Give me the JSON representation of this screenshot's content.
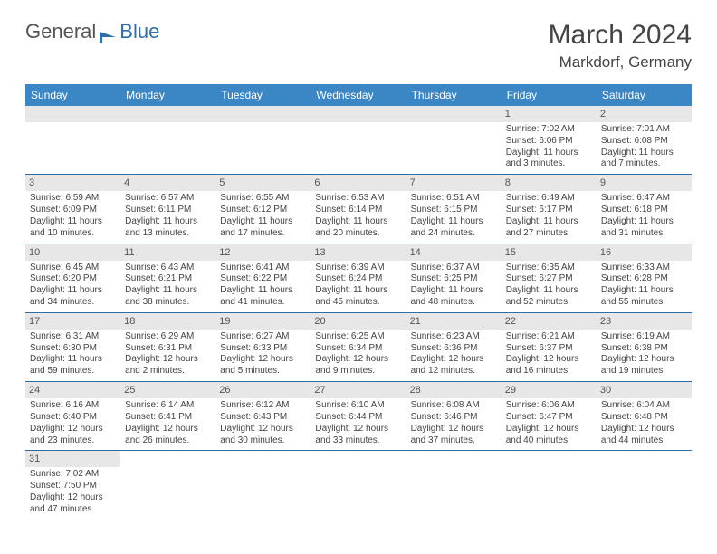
{
  "brand": {
    "part1": "General",
    "part2": "Blue"
  },
  "title": {
    "month": "March 2024",
    "location": "Markdorf, Germany"
  },
  "colors": {
    "headerBg": "#3b86c4",
    "weekRule": "#2e6da8",
    "numBg": "#e7e7e7",
    "text": "#444"
  },
  "dayNames": [
    "Sunday",
    "Monday",
    "Tuesday",
    "Wednesday",
    "Thursday",
    "Friday",
    "Saturday"
  ],
  "weeks": [
    [
      null,
      null,
      null,
      null,
      null,
      {
        "n": "1",
        "sr": "Sunrise: 7:02 AM",
        "ss": "Sunset: 6:06 PM",
        "d1": "Daylight: 11 hours",
        "d2": "and 3 minutes."
      },
      {
        "n": "2",
        "sr": "Sunrise: 7:01 AM",
        "ss": "Sunset: 6:08 PM",
        "d1": "Daylight: 11 hours",
        "d2": "and 7 minutes."
      }
    ],
    [
      {
        "n": "3",
        "sr": "Sunrise: 6:59 AM",
        "ss": "Sunset: 6:09 PM",
        "d1": "Daylight: 11 hours",
        "d2": "and 10 minutes."
      },
      {
        "n": "4",
        "sr": "Sunrise: 6:57 AM",
        "ss": "Sunset: 6:11 PM",
        "d1": "Daylight: 11 hours",
        "d2": "and 13 minutes."
      },
      {
        "n": "5",
        "sr": "Sunrise: 6:55 AM",
        "ss": "Sunset: 6:12 PM",
        "d1": "Daylight: 11 hours",
        "d2": "and 17 minutes."
      },
      {
        "n": "6",
        "sr": "Sunrise: 6:53 AM",
        "ss": "Sunset: 6:14 PM",
        "d1": "Daylight: 11 hours",
        "d2": "and 20 minutes."
      },
      {
        "n": "7",
        "sr": "Sunrise: 6:51 AM",
        "ss": "Sunset: 6:15 PM",
        "d1": "Daylight: 11 hours",
        "d2": "and 24 minutes."
      },
      {
        "n": "8",
        "sr": "Sunrise: 6:49 AM",
        "ss": "Sunset: 6:17 PM",
        "d1": "Daylight: 11 hours",
        "d2": "and 27 minutes."
      },
      {
        "n": "9",
        "sr": "Sunrise: 6:47 AM",
        "ss": "Sunset: 6:18 PM",
        "d1": "Daylight: 11 hours",
        "d2": "and 31 minutes."
      }
    ],
    [
      {
        "n": "10",
        "sr": "Sunrise: 6:45 AM",
        "ss": "Sunset: 6:20 PM",
        "d1": "Daylight: 11 hours",
        "d2": "and 34 minutes."
      },
      {
        "n": "11",
        "sr": "Sunrise: 6:43 AM",
        "ss": "Sunset: 6:21 PM",
        "d1": "Daylight: 11 hours",
        "d2": "and 38 minutes."
      },
      {
        "n": "12",
        "sr": "Sunrise: 6:41 AM",
        "ss": "Sunset: 6:22 PM",
        "d1": "Daylight: 11 hours",
        "d2": "and 41 minutes."
      },
      {
        "n": "13",
        "sr": "Sunrise: 6:39 AM",
        "ss": "Sunset: 6:24 PM",
        "d1": "Daylight: 11 hours",
        "d2": "and 45 minutes."
      },
      {
        "n": "14",
        "sr": "Sunrise: 6:37 AM",
        "ss": "Sunset: 6:25 PM",
        "d1": "Daylight: 11 hours",
        "d2": "and 48 minutes."
      },
      {
        "n": "15",
        "sr": "Sunrise: 6:35 AM",
        "ss": "Sunset: 6:27 PM",
        "d1": "Daylight: 11 hours",
        "d2": "and 52 minutes."
      },
      {
        "n": "16",
        "sr": "Sunrise: 6:33 AM",
        "ss": "Sunset: 6:28 PM",
        "d1": "Daylight: 11 hours",
        "d2": "and 55 minutes."
      }
    ],
    [
      {
        "n": "17",
        "sr": "Sunrise: 6:31 AM",
        "ss": "Sunset: 6:30 PM",
        "d1": "Daylight: 11 hours",
        "d2": "and 59 minutes."
      },
      {
        "n": "18",
        "sr": "Sunrise: 6:29 AM",
        "ss": "Sunset: 6:31 PM",
        "d1": "Daylight: 12 hours",
        "d2": "and 2 minutes."
      },
      {
        "n": "19",
        "sr": "Sunrise: 6:27 AM",
        "ss": "Sunset: 6:33 PM",
        "d1": "Daylight: 12 hours",
        "d2": "and 5 minutes."
      },
      {
        "n": "20",
        "sr": "Sunrise: 6:25 AM",
        "ss": "Sunset: 6:34 PM",
        "d1": "Daylight: 12 hours",
        "d2": "and 9 minutes."
      },
      {
        "n": "21",
        "sr": "Sunrise: 6:23 AM",
        "ss": "Sunset: 6:36 PM",
        "d1": "Daylight: 12 hours",
        "d2": "and 12 minutes."
      },
      {
        "n": "22",
        "sr": "Sunrise: 6:21 AM",
        "ss": "Sunset: 6:37 PM",
        "d1": "Daylight: 12 hours",
        "d2": "and 16 minutes."
      },
      {
        "n": "23",
        "sr": "Sunrise: 6:19 AM",
        "ss": "Sunset: 6:38 PM",
        "d1": "Daylight: 12 hours",
        "d2": "and 19 minutes."
      }
    ],
    [
      {
        "n": "24",
        "sr": "Sunrise: 6:16 AM",
        "ss": "Sunset: 6:40 PM",
        "d1": "Daylight: 12 hours",
        "d2": "and 23 minutes."
      },
      {
        "n": "25",
        "sr": "Sunrise: 6:14 AM",
        "ss": "Sunset: 6:41 PM",
        "d1": "Daylight: 12 hours",
        "d2": "and 26 minutes."
      },
      {
        "n": "26",
        "sr": "Sunrise: 6:12 AM",
        "ss": "Sunset: 6:43 PM",
        "d1": "Daylight: 12 hours",
        "d2": "and 30 minutes."
      },
      {
        "n": "27",
        "sr": "Sunrise: 6:10 AM",
        "ss": "Sunset: 6:44 PM",
        "d1": "Daylight: 12 hours",
        "d2": "and 33 minutes."
      },
      {
        "n": "28",
        "sr": "Sunrise: 6:08 AM",
        "ss": "Sunset: 6:46 PM",
        "d1": "Daylight: 12 hours",
        "d2": "and 37 minutes."
      },
      {
        "n": "29",
        "sr": "Sunrise: 6:06 AM",
        "ss": "Sunset: 6:47 PM",
        "d1": "Daylight: 12 hours",
        "d2": "and 40 minutes."
      },
      {
        "n": "30",
        "sr": "Sunrise: 6:04 AM",
        "ss": "Sunset: 6:48 PM",
        "d1": "Daylight: 12 hours",
        "d2": "and 44 minutes."
      }
    ],
    [
      {
        "n": "31",
        "sr": "Sunrise: 7:02 AM",
        "ss": "Sunset: 7:50 PM",
        "d1": "Daylight: 12 hours",
        "d2": "and 47 minutes."
      },
      null,
      null,
      null,
      null,
      null,
      null
    ]
  ]
}
